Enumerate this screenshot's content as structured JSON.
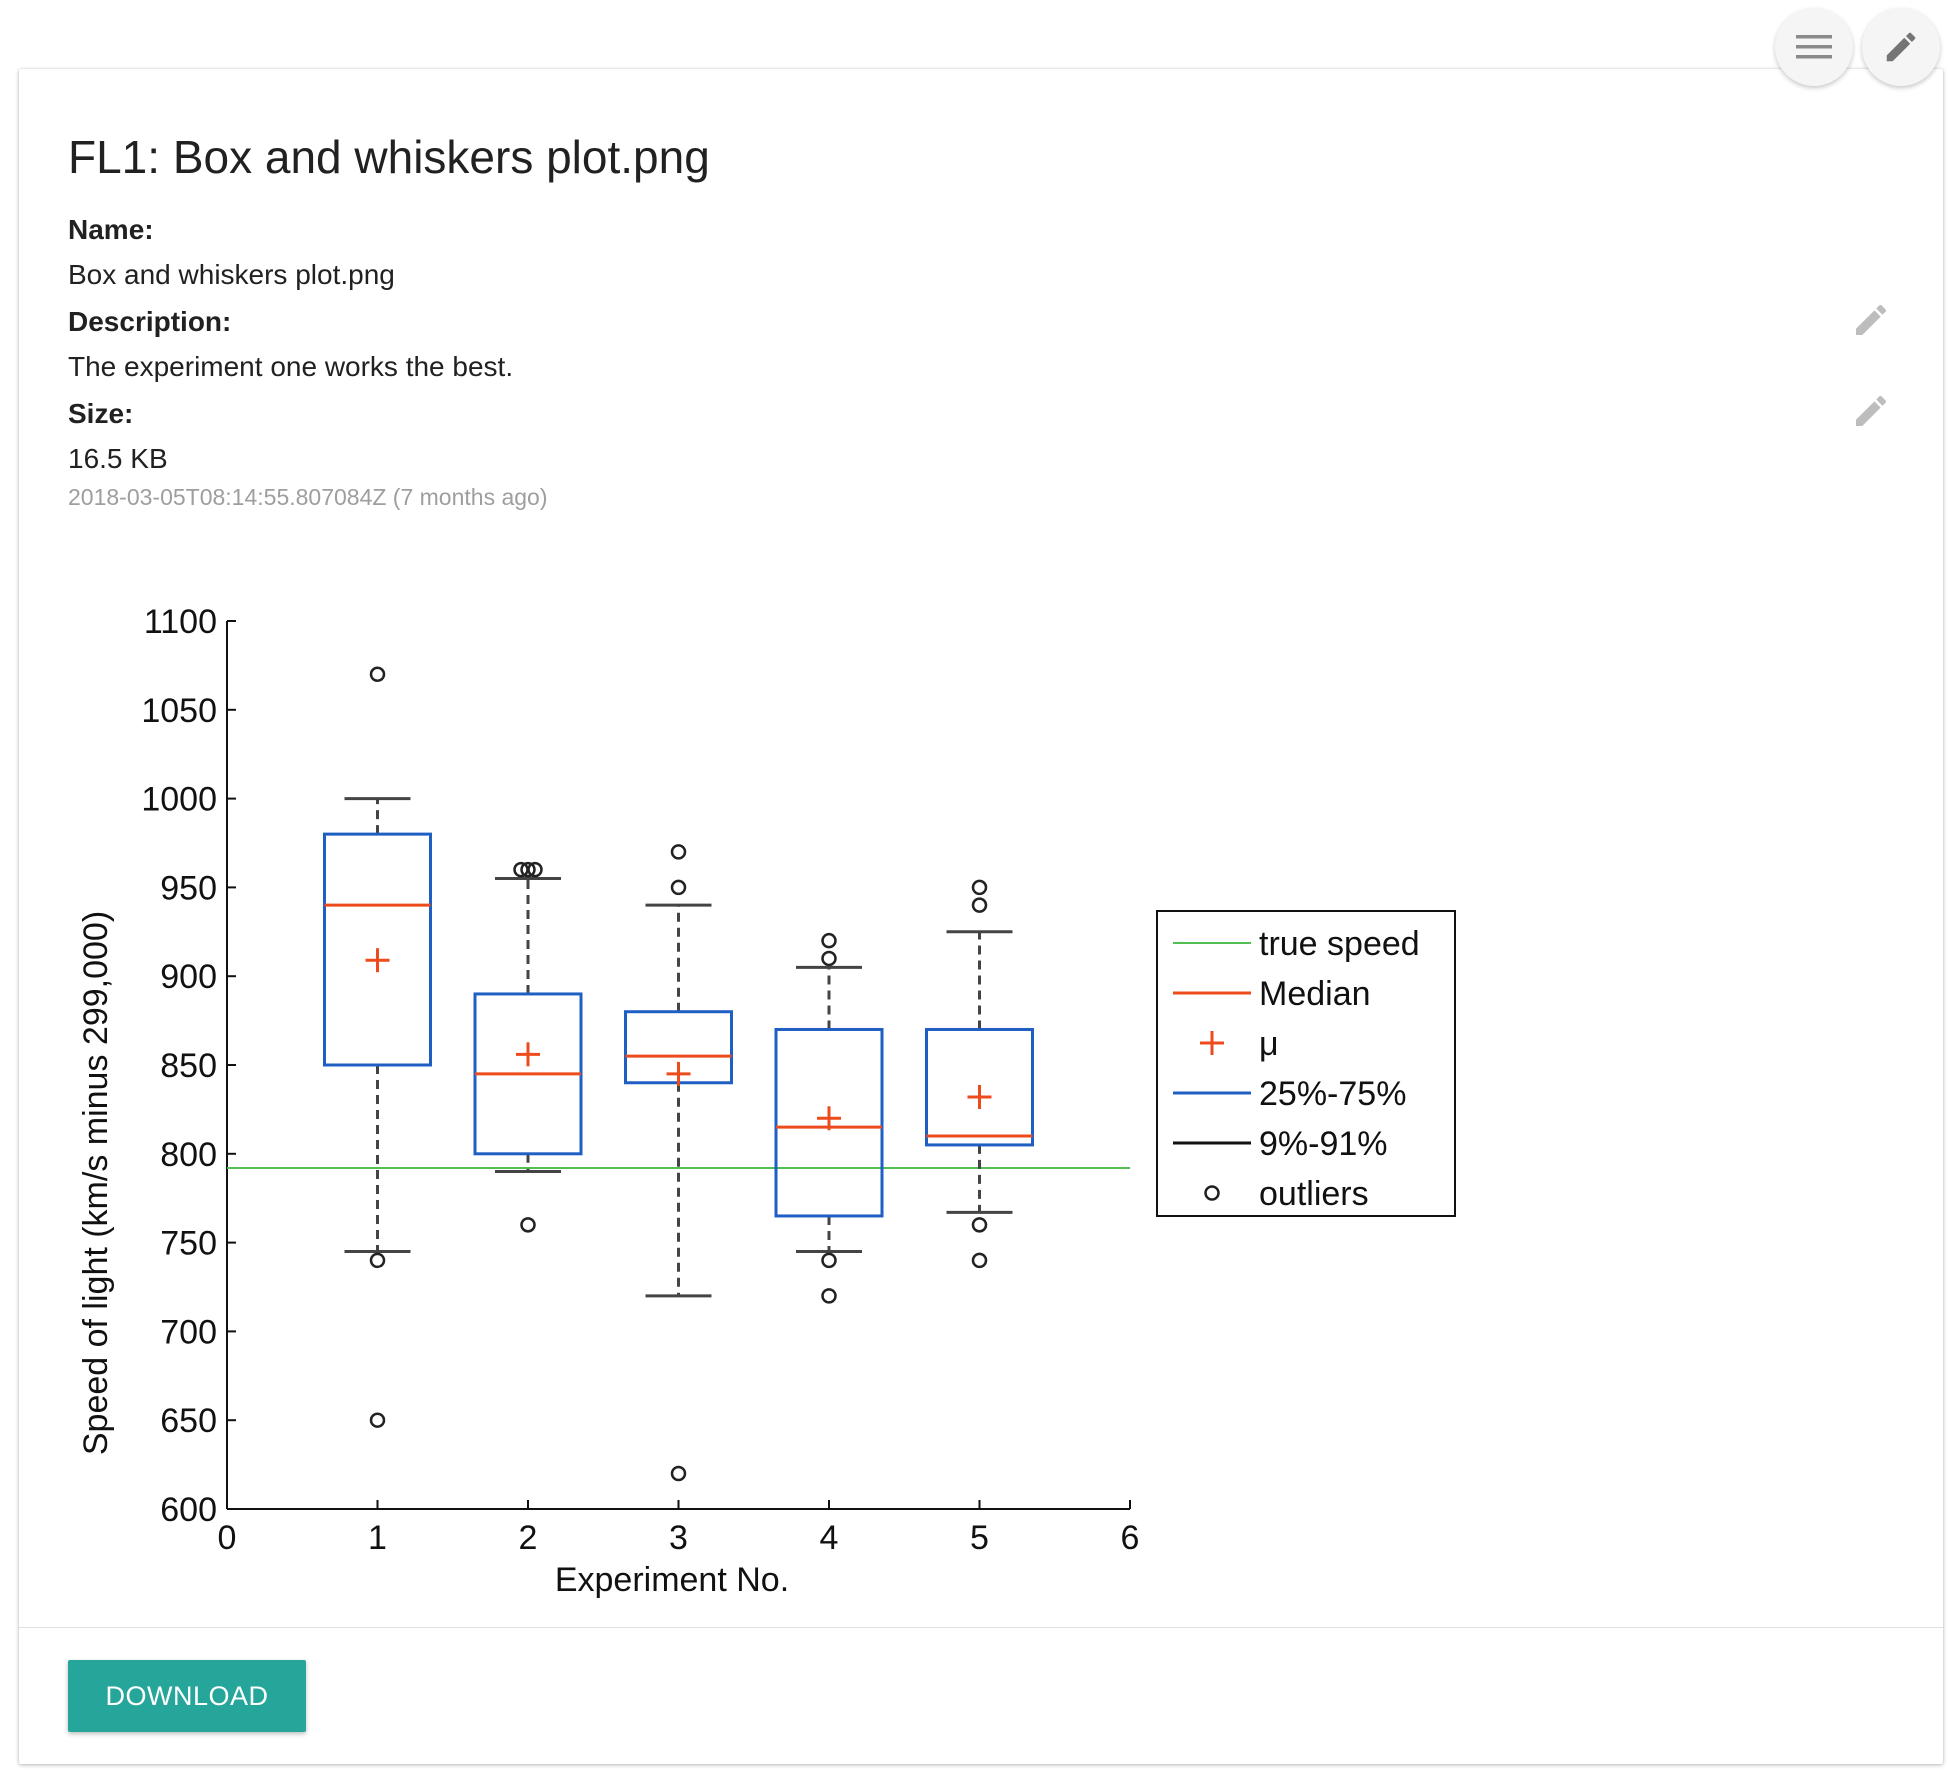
{
  "header": {
    "menu_icon": "menu-icon",
    "edit_icon": "pencil-icon"
  },
  "file": {
    "title": "FL1: Box and whiskers plot.png",
    "name_label": "Name:",
    "name_value": "Box and whiskers plot.png",
    "description_label": "Description:",
    "description_value": "The experiment one works the best.",
    "size_label": "Size:",
    "size_value": "16.5 KB",
    "timestamp": "2018-03-05T08:14:55.807084Z (7 months ago)"
  },
  "footer": {
    "download_label": "DOWNLOAD"
  },
  "colors": {
    "accent": "#26a69a",
    "box": "#1f5fc4",
    "median": "#ee4b1c",
    "true_speed": "#53bf53",
    "whisker": "#444444"
  },
  "chart_data": {
    "type": "box",
    "xlabel": "Experiment No.",
    "ylabel": "Speed of light (km/s minus 299,000)",
    "xlim": [
      0,
      6
    ],
    "ylim": [
      600,
      1100
    ],
    "xticks": [
      0,
      1,
      2,
      3,
      4,
      5,
      6
    ],
    "yticks": [
      600,
      650,
      700,
      750,
      800,
      850,
      900,
      950,
      1000,
      1050,
      1100
    ],
    "true_speed": 792,
    "boxes": [
      {
        "x": 1,
        "q1": 850,
        "q3": 980,
        "median": 940,
        "mean": 909,
        "whisker_low": 745,
        "whisker_high": 1000,
        "outliers": [
          1070,
          740,
          650
        ]
      },
      {
        "x": 2,
        "q1": 800,
        "q3": 890,
        "median": 845,
        "mean": 856,
        "whisker_low": 790,
        "whisker_high": 955,
        "outliers": [
          960,
          960,
          960,
          760
        ]
      },
      {
        "x": 3,
        "q1": 840,
        "q3": 880,
        "median": 855,
        "mean": 845,
        "whisker_low": 720,
        "whisker_high": 940,
        "outliers": [
          970,
          950,
          620
        ]
      },
      {
        "x": 4,
        "q1": 765,
        "q3": 870,
        "median": 815,
        "mean": 820,
        "whisker_low": 745,
        "whisker_high": 905,
        "outliers": [
          920,
          910,
          740,
          720
        ]
      },
      {
        "x": 5,
        "q1": 805,
        "q3": 870,
        "median": 810,
        "mean": 832,
        "whisker_low": 767,
        "whisker_high": 925,
        "outliers": [
          950,
          940,
          760,
          740
        ]
      }
    ],
    "legend": {
      "position": "right",
      "entries": [
        "true speed",
        "Median",
        "μ",
        "25%-75%",
        "9%-91%",
        "outliers"
      ]
    }
  }
}
